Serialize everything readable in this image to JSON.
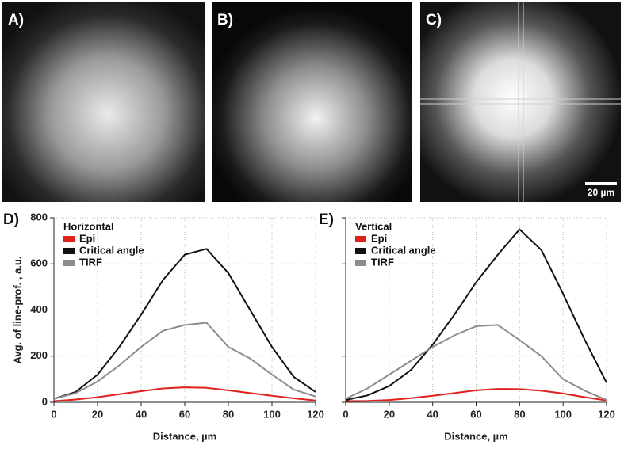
{
  "panels": [
    {
      "label": "A)"
    },
    {
      "label": "B)"
    },
    {
      "label": "C)"
    }
  ],
  "scale_bar": "20 µm",
  "chart_data": [
    {
      "type": "line",
      "panel_label": "D)",
      "legend_title": "Horizontal",
      "x_label": "Distance, µm",
      "y_label": "Avg. of line-prof. , a.u.",
      "x": [
        0,
        10,
        20,
        30,
        40,
        50,
        60,
        70,
        80,
        90,
        100,
        110,
        120
      ],
      "xlim": [
        0,
        120
      ],
      "xticks": [
        0,
        20,
        40,
        60,
        80,
        100,
        120
      ],
      "ylim": [
        0,
        800
      ],
      "yticks": [
        0,
        200,
        400,
        600,
        800
      ],
      "grid": true,
      "series": [
        {
          "name": "Epi",
          "color": "#e0201b",
          "values": [
            5,
            12,
            22,
            35,
            48,
            60,
            65,
            63,
            52,
            40,
            28,
            17,
            8
          ]
        },
        {
          "name": "Critical angle",
          "color": "#111111",
          "values": [
            15,
            45,
            120,
            240,
            380,
            530,
            640,
            665,
            560,
            400,
            240,
            110,
            45
          ]
        },
        {
          "name": "TIRF",
          "color": "#8c8c8c",
          "values": [
            15,
            40,
            90,
            160,
            240,
            310,
            335,
            345,
            240,
            190,
            120,
            55,
            25
          ]
        }
      ]
    },
    {
      "type": "line",
      "panel_label": "E)",
      "legend_title": "Vertical",
      "x_label": "Distance, µm",
      "x": [
        0,
        10,
        20,
        30,
        40,
        50,
        60,
        70,
        80,
        90,
        100,
        110,
        120
      ],
      "xlim": [
        0,
        120
      ],
      "xticks": [
        0,
        20,
        40,
        60,
        80,
        100,
        120
      ],
      "ylim": [
        0,
        800
      ],
      "yticks": [
        0,
        200,
        400,
        600,
        800
      ],
      "grid": true,
      "series": [
        {
          "name": "Epi",
          "color": "#e0201b",
          "values": [
            5,
            6,
            10,
            18,
            28,
            40,
            52,
            58,
            57,
            50,
            38,
            22,
            8
          ]
        },
        {
          "name": "Critical angle",
          "color": "#111111",
          "values": [
            10,
            30,
            70,
            140,
            250,
            380,
            520,
            640,
            750,
            660,
            470,
            270,
            85
          ]
        },
        {
          "name": "TIRF",
          "color": "#8c8c8c",
          "values": [
            15,
            60,
            120,
            180,
            240,
            290,
            330,
            335,
            270,
            200,
            100,
            50,
            10
          ]
        }
      ]
    }
  ]
}
